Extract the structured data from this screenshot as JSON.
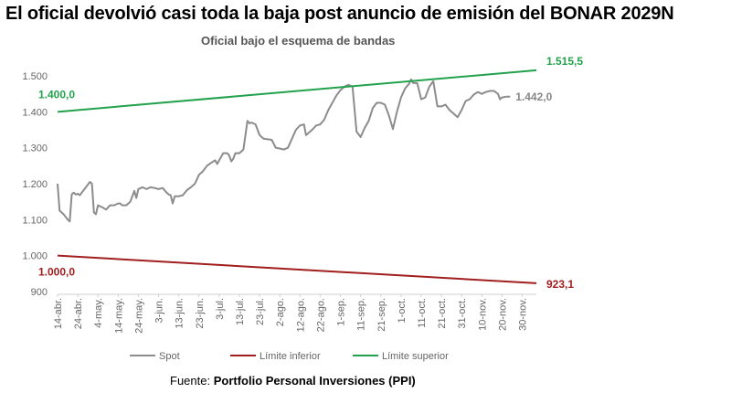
{
  "header": {
    "title": "El oficial devolvió casi toda la baja post anuncio de emisión del BONAR 2029N",
    "subtitle": "Oficial bajo el esquema de bandas"
  },
  "footer": {
    "source_prefix": "Fuente: ",
    "source_name": "Portfolio Personal Inversiones (PPI)"
  },
  "chart_data": {
    "type": "line",
    "title": "Oficial bajo el esquema de bandas",
    "ylim": [
      900,
      1500
    ],
    "yticks": [
      "1.500",
      "1.400",
      "1.300",
      "1.200",
      "1.100",
      "1.000",
      "900"
    ],
    "ytick_values": [
      1500,
      1400,
      1300,
      1200,
      1100,
      1000,
      900
    ],
    "x_tick_labels": [
      "14-abr.",
      "24-abr.",
      "4-may.",
      "14-may.",
      "24-may.",
      "3-jun.",
      "13-jun.",
      "23-jun.",
      "3-jul.",
      "13-jul.",
      "23-jul.",
      "2-ago.",
      "12-ago.",
      "22-ago.",
      "1-sep.",
      "11-sep.",
      "21-sep.",
      "1-oct.",
      "11-oct.",
      "21-oct.",
      "31-oct.",
      "10-nov.",
      "20-nov.",
      "30-nov."
    ],
    "x_start": "14-abr.",
    "x_end_days": 237,
    "legend_position": "bottom",
    "grid": false,
    "series": [
      {
        "name": "Spot",
        "color": "#8c8c8c",
        "start_value": 1200,
        "end_value": 1442,
        "end_label": "1.442,0",
        "points": [
          [
            0,
            1200
          ],
          [
            1,
            1125
          ],
          [
            3,
            1115
          ],
          [
            5,
            1100
          ],
          [
            6,
            1095
          ],
          [
            7,
            1170
          ],
          [
            8,
            1175
          ],
          [
            9,
            1170
          ],
          [
            10,
            1172
          ],
          [
            11,
            1168
          ],
          [
            12,
            1175
          ],
          [
            14,
            1190
          ],
          [
            16,
            1205
          ],
          [
            17,
            1200
          ],
          [
            18,
            1120
          ],
          [
            19,
            1115
          ],
          [
            20,
            1140
          ],
          [
            22,
            1135
          ],
          [
            24,
            1128
          ],
          [
            26,
            1140
          ],
          [
            28,
            1140
          ],
          [
            30,
            1145
          ],
          [
            31,
            1145
          ],
          [
            32,
            1140
          ],
          [
            34,
            1140
          ],
          [
            36,
            1150
          ],
          [
            38,
            1180
          ],
          [
            39,
            1160
          ],
          [
            40,
            1185
          ],
          [
            42,
            1190
          ],
          [
            44,
            1185
          ],
          [
            46,
            1190
          ],
          [
            48,
            1188
          ],
          [
            50,
            1185
          ],
          [
            52,
            1188
          ],
          [
            54,
            1175
          ],
          [
            55,
            1170
          ],
          [
            56,
            1168
          ],
          [
            57,
            1145
          ],
          [
            58,
            1165
          ],
          [
            60,
            1165
          ],
          [
            62,
            1168
          ],
          [
            64,
            1182
          ],
          [
            66,
            1190
          ],
          [
            68,
            1200
          ],
          [
            70,
            1225
          ],
          [
            72,
            1235
          ],
          [
            74,
            1250
          ],
          [
            76,
            1258
          ],
          [
            78,
            1265
          ],
          [
            79,
            1255
          ],
          [
            80,
            1265
          ],
          [
            82,
            1285
          ],
          [
            84,
            1285
          ],
          [
            85,
            1278
          ],
          [
            86,
            1262
          ],
          [
            87,
            1270
          ],
          [
            88,
            1285
          ],
          [
            90,
            1285
          ],
          [
            92,
            1295
          ],
          [
            94,
            1375
          ],
          [
            95,
            1368
          ],
          [
            96,
            1370
          ],
          [
            98,
            1365
          ],
          [
            100,
            1335
          ],
          [
            102,
            1325
          ],
          [
            106,
            1322
          ],
          [
            108,
            1300
          ],
          [
            110,
            1298
          ],
          [
            112,
            1295
          ],
          [
            114,
            1300
          ],
          [
            116,
            1325
          ],
          [
            118,
            1350
          ],
          [
            120,
            1362
          ],
          [
            122,
            1365
          ],
          [
            123,
            1335
          ],
          [
            124,
            1340
          ],
          [
            126,
            1350
          ],
          [
            128,
            1362
          ],
          [
            130,
            1365
          ],
          [
            132,
            1378
          ],
          [
            134,
            1405
          ],
          [
            136,
            1425
          ],
          [
            138,
            1445
          ],
          [
            140,
            1460
          ],
          [
            142,
            1470
          ],
          [
            144,
            1475
          ],
          [
            146,
            1470
          ],
          [
            148,
            1345
          ],
          [
            150,
            1330
          ],
          [
            152,
            1355
          ],
          [
            154,
            1375
          ],
          [
            156,
            1410
          ],
          [
            158,
            1425
          ],
          [
            160,
            1425
          ],
          [
            162,
            1420
          ],
          [
            164,
            1390
          ],
          [
            166,
            1352
          ],
          [
            168,
            1400
          ],
          [
            170,
            1440
          ],
          [
            172,
            1465
          ],
          [
            174,
            1478
          ],
          [
            175,
            1490
          ],
          [
            176,
            1480
          ],
          [
            178,
            1480
          ],
          [
            180,
            1435
          ],
          [
            182,
            1440
          ],
          [
            184,
            1470
          ],
          [
            186,
            1485
          ],
          [
            188,
            1415
          ],
          [
            190,
            1415
          ],
          [
            192,
            1420
          ],
          [
            194,
            1405
          ],
          [
            196,
            1395
          ],
          [
            198,
            1385
          ],
          [
            200,
            1405
          ],
          [
            202,
            1430
          ],
          [
            204,
            1435
          ],
          [
            206,
            1448
          ],
          [
            208,
            1455
          ],
          [
            210,
            1450
          ],
          [
            212,
            1455
          ],
          [
            214,
            1458
          ],
          [
            216,
            1458
          ],
          [
            218,
            1450
          ],
          [
            219,
            1435
          ],
          [
            220,
            1440
          ],
          [
            222,
            1442
          ],
          [
            224,
            1442
          ]
        ]
      },
      {
        "name": "Límite inferior",
        "color": "#a11e1e",
        "start_value": 1000,
        "end_value": 923.1,
        "start_label": "1.000,0",
        "end_label": "923,1"
      },
      {
        "name": "Límite superior",
        "color": "#23a24d",
        "start_value": 1400,
        "end_value": 1515.5,
        "start_label": "1.400,0",
        "end_label": "1.515,5"
      }
    ]
  }
}
